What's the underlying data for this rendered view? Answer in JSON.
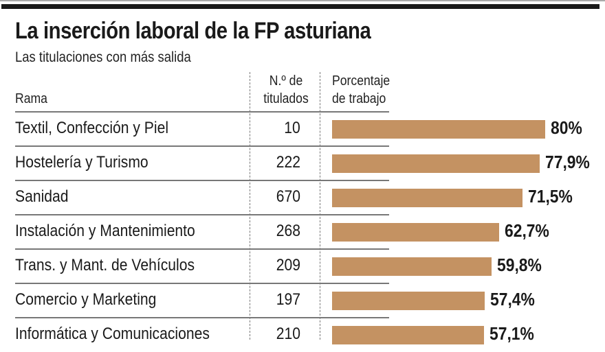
{
  "chart_data": {
    "type": "bar",
    "title": "La inserción laboral de la FP asturiana",
    "subtitle": "Las titulaciones con más salida",
    "headers": {
      "rama": "Rama",
      "titulados": [
        "N.º de",
        "titulados"
      ],
      "porcentaje": [
        "Porcentaje",
        "de trabajo"
      ]
    },
    "bar_color": "#c49262",
    "rows": [
      {
        "rama": "Textil, Confección y Piel",
        "titulados": "10",
        "value": 80,
        "label": "80%"
      },
      {
        "rama": "Hostelería y Turismo",
        "titulados": "222",
        "value": 77.9,
        "label": "77,9%"
      },
      {
        "rama": "Sanidad",
        "titulados": "670",
        "value": 71.5,
        "label": "71,5%"
      },
      {
        "rama": "Instalación y Mantenimiento",
        "titulados": "268",
        "value": 62.7,
        "label": "62,7%"
      },
      {
        "rama": "Trans. y Mant. de Vehículos",
        "titulados": "209",
        "value": 59.8,
        "label": "59,8%"
      },
      {
        "rama": "Comercio y Marketing",
        "titulados": "197",
        "value": 57.4,
        "label": "57,4%"
      },
      {
        "rama": "Informática y Comunicaciones",
        "titulados": "210",
        "value": 57.1,
        "label": "57,1%"
      }
    ]
  }
}
